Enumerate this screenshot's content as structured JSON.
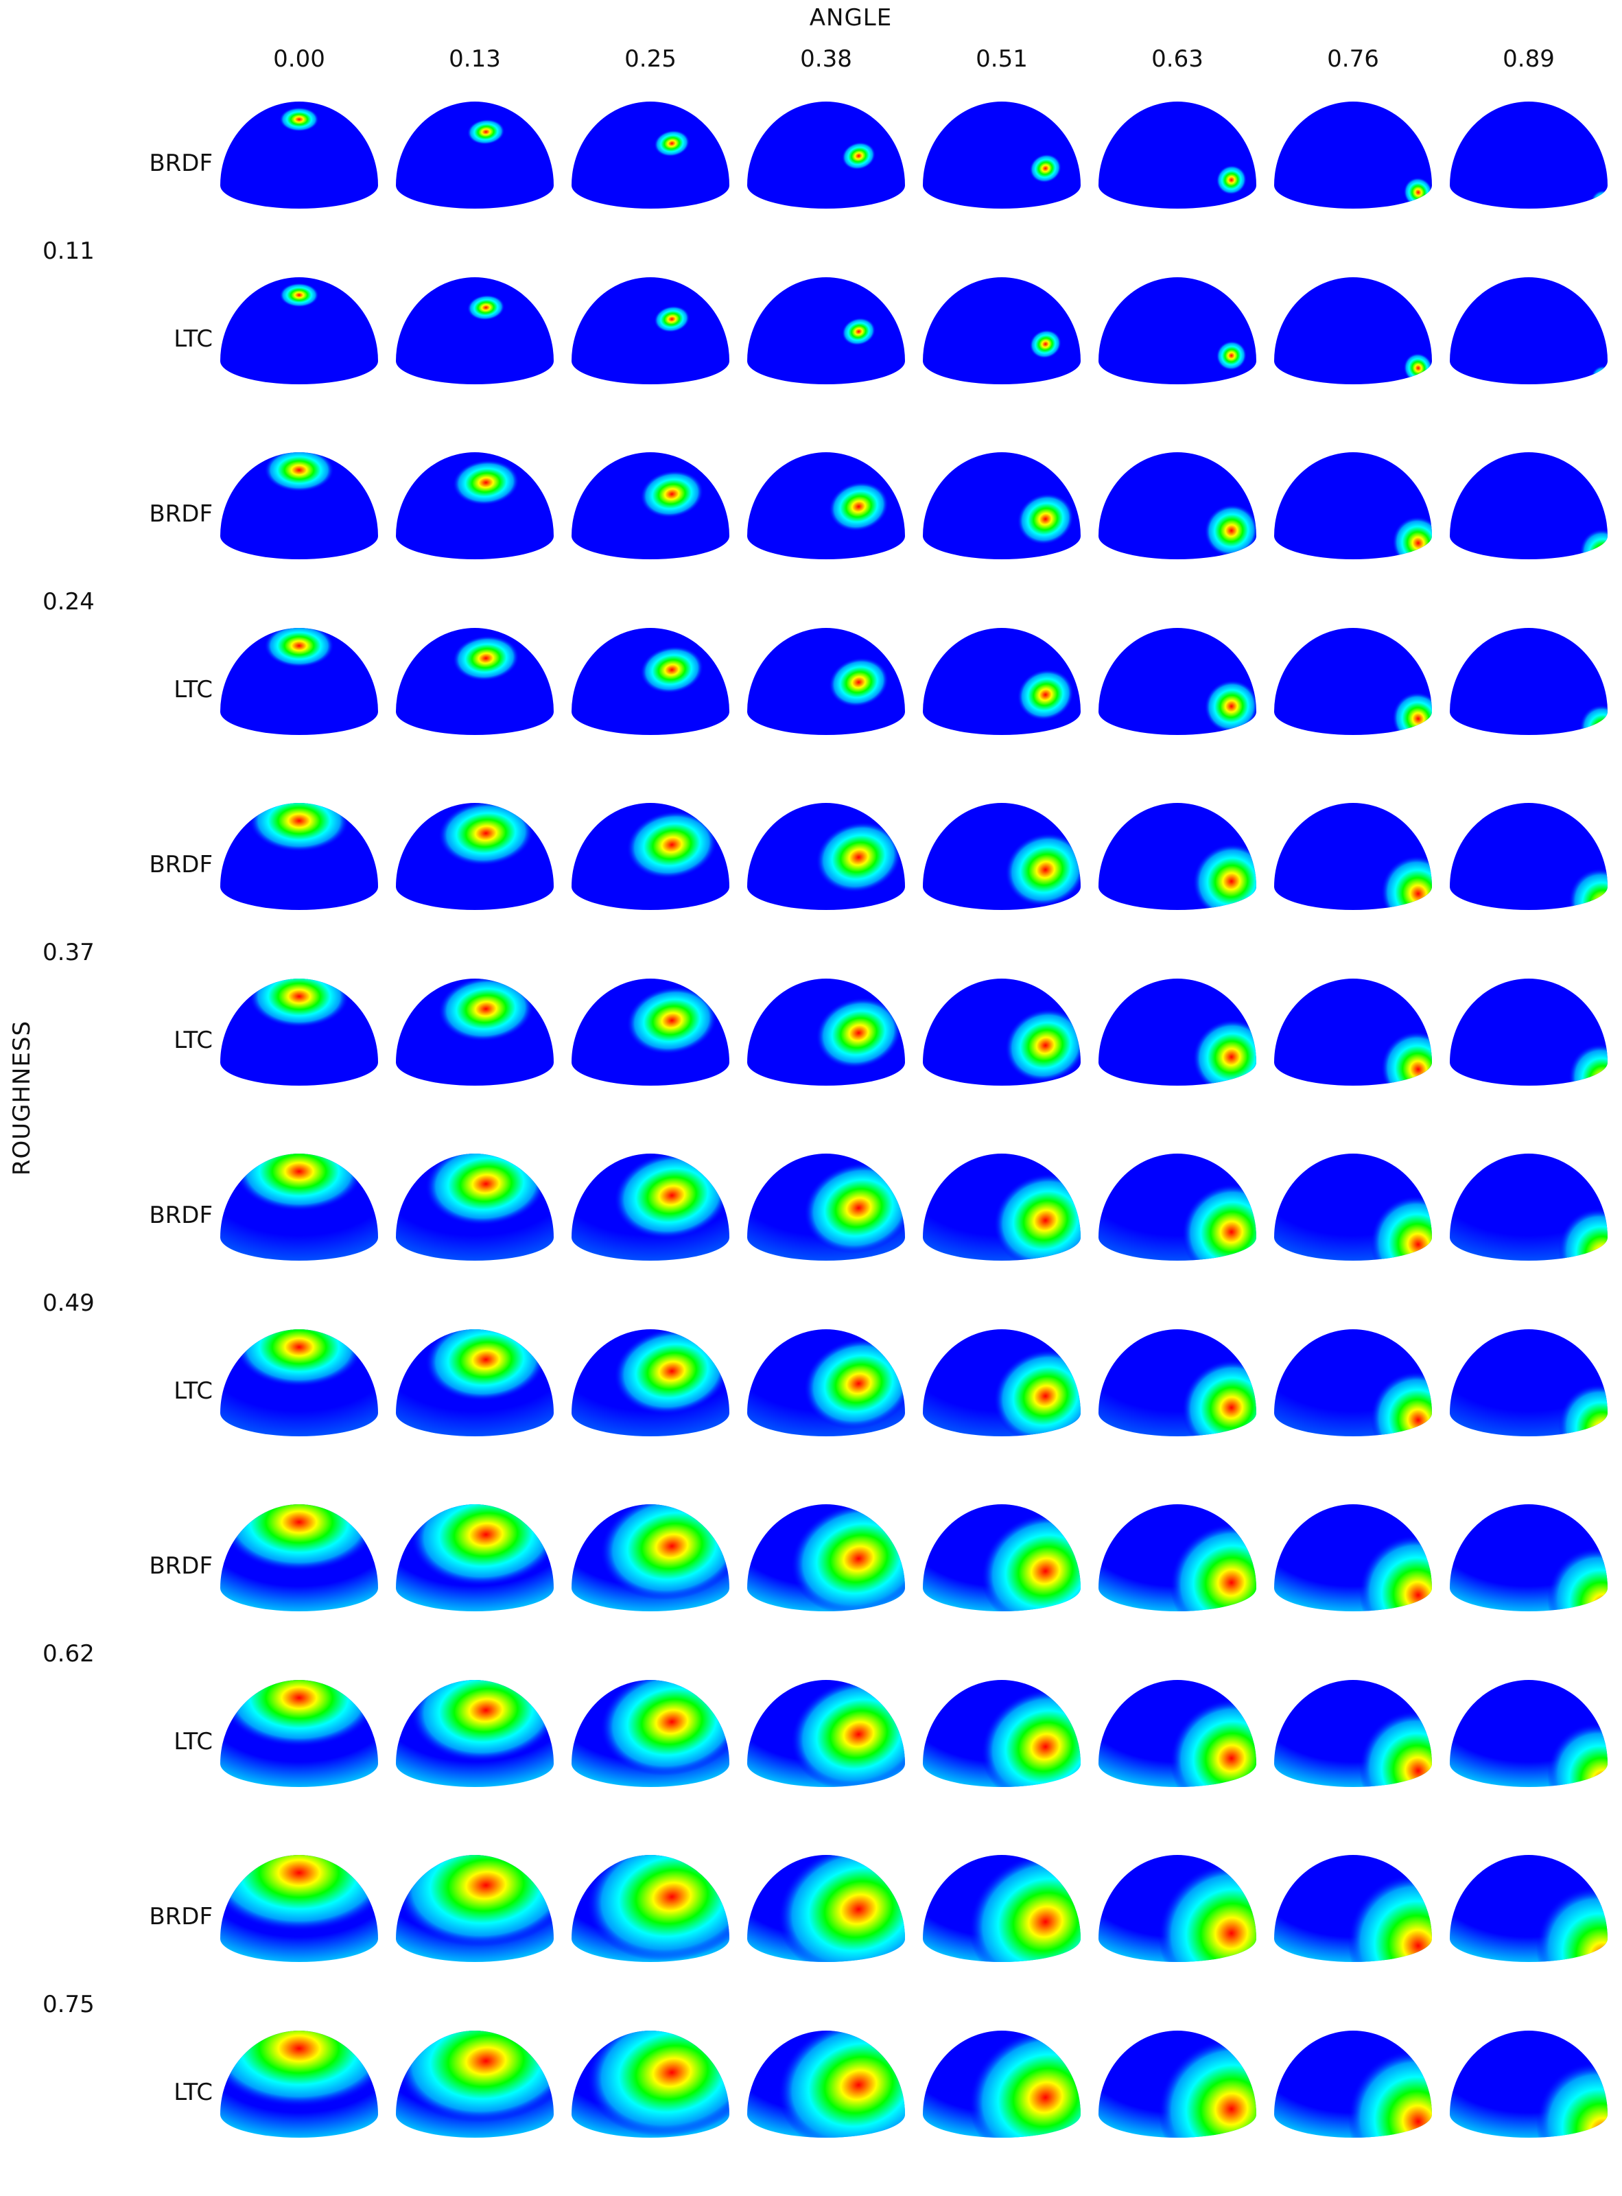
{
  "figure": {
    "x_title": "ANGLE",
    "y_title": "ROUGHNESS",
    "angles": [
      "0.00",
      "0.13",
      "0.25",
      "0.38",
      "0.51",
      "0.63",
      "0.76",
      "0.89"
    ],
    "roughness": [
      "0.11",
      "0.24",
      "0.37",
      "0.49",
      "0.62",
      "0.75"
    ],
    "row_types": [
      "BRDF",
      "LTC"
    ],
    "colormap": [
      "#0000ff",
      "#00a0ff",
      "#00ffff",
      "#00ff00",
      "#ffff00",
      "#ff0000"
    ]
  }
}
